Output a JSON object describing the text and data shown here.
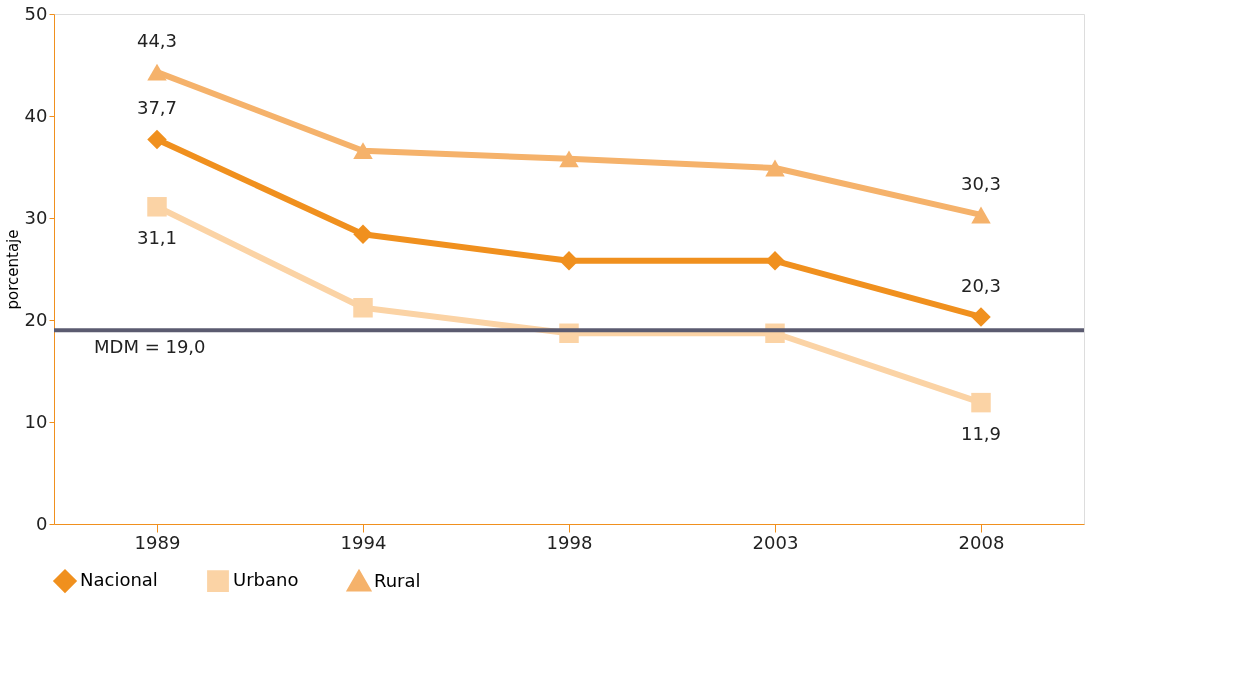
{
  "chart_data": {
    "type": "line",
    "ylabel": "porcentaje",
    "categories": [
      "1989",
      "1994",
      "1998",
      "2003",
      "2008"
    ],
    "series": [
      {
        "name": "Nacional",
        "color": "#f0901e",
        "marker": "diamond",
        "values": [
          37.7,
          28.4,
          25.8,
          25.8,
          20.3
        ],
        "value_labels": [
          "37,7",
          null,
          null,
          null,
          "20,3"
        ]
      },
      {
        "name": "Urbano",
        "color": "#fbd3a5",
        "marker": "square",
        "values": [
          31.1,
          21.2,
          18.7,
          18.7,
          11.9
        ],
        "value_labels": [
          "31,1",
          null,
          null,
          null,
          "11,9"
        ]
      },
      {
        "name": "Rural",
        "color": "#f5b26b",
        "marker": "triangle",
        "values": [
          44.3,
          36.6,
          35.8,
          34.9,
          30.3
        ],
        "value_labels": [
          "44,3",
          null,
          null,
          null,
          "30,3"
        ]
      }
    ],
    "ylim": [
      0,
      50
    ],
    "yticks": [
      0,
      10,
      20,
      30,
      40,
      50
    ],
    "grid": false,
    "legend": "bottom",
    "line_style": "solid",
    "ref_lines": [
      {
        "axis": "y",
        "value": 19.0,
        "label": "MDM = 19,0",
        "color": "#5b5b70"
      }
    ]
  }
}
